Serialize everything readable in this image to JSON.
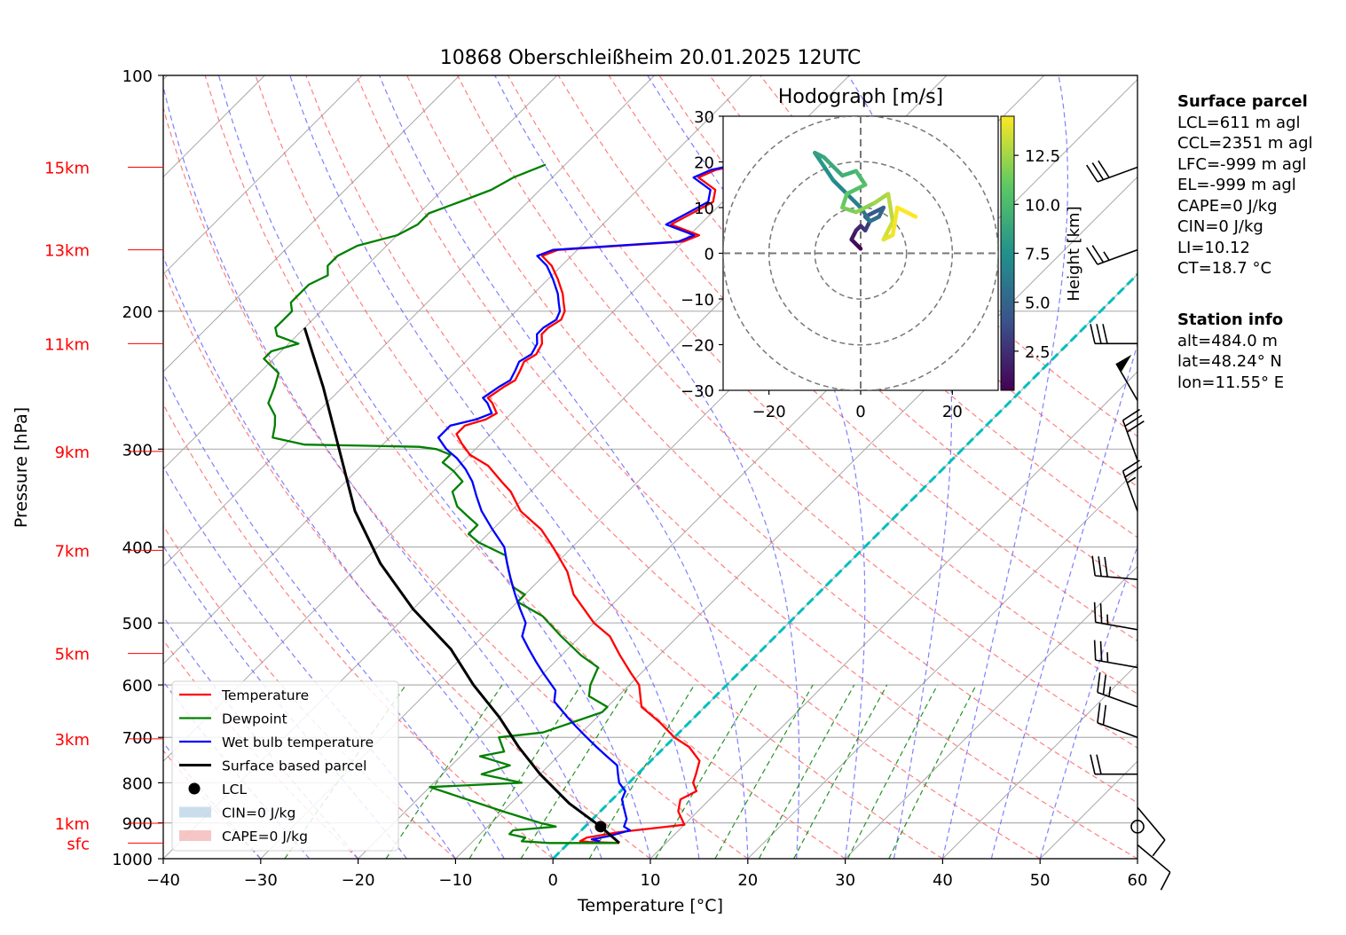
{
  "chart_data": {
    "type": "skew-t",
    "title": "10868 Oberschleißheim 20.01.2025 12UTC",
    "xlabel": "Temperature [°C]",
    "ylabel": "Pressure [hPa]",
    "xlim": [
      -40,
      60
    ],
    "ylim": [
      1000,
      100
    ],
    "x_ticks": [
      -40,
      -30,
      -20,
      -10,
      0,
      10,
      20,
      30,
      40,
      50,
      60
    ],
    "pressure_ticks": [
      100,
      200,
      300,
      400,
      500,
      600,
      700,
      800,
      900,
      1000
    ],
    "height_labels": [
      {
        "label": "15km",
        "p": 131
      },
      {
        "label": "13km",
        "p": 167
      },
      {
        "label": "11km",
        "p": 220
      },
      {
        "label": "9km",
        "p": 302
      },
      {
        "label": "7km",
        "p": 404
      },
      {
        "label": "5km",
        "p": 547
      },
      {
        "label": "3km",
        "p": 703
      },
      {
        "label": "1km",
        "p": 901
      },
      {
        "label": "sfc",
        "p": 955
      }
    ],
    "colors": {
      "temperature": "#ff0000",
      "dewpoint": "#008000",
      "wetbulb": "#0000ff",
      "parcel": "#000000",
      "isotherm_0": "#00bfbf",
      "dry_adiabat": "#ff6060",
      "moist_adiabat": "#6060ff",
      "mixing_ratio": "#008000",
      "height_label": "#ff0000"
    },
    "series": [
      {
        "name": "Temperature",
        "points": [
          [
            5.2,
            955
          ],
          [
            2,
            952
          ],
          [
            1,
            950
          ],
          [
            1.3,
            940
          ],
          [
            4,
            925
          ],
          [
            10,
            905
          ],
          [
            8,
            870
          ],
          [
            7,
            840
          ],
          [
            7.8,
            820
          ],
          [
            6.6,
            800
          ],
          [
            6,
            780
          ],
          [
            5,
            750
          ],
          [
            2.5,
            720
          ],
          [
            0,
            700
          ],
          [
            -3,
            670
          ],
          [
            -6.5,
            640
          ],
          [
            -9,
            600
          ],
          [
            -11,
            580
          ],
          [
            -14,
            550
          ],
          [
            -17,
            520
          ],
          [
            -20,
            500
          ],
          [
            -25,
            460
          ],
          [
            -28,
            430
          ],
          [
            -32,
            400
          ],
          [
            -35,
            380
          ],
          [
            -39,
            360
          ],
          [
            -42,
            340
          ],
          [
            -44,
            330
          ],
          [
            -47,
            315
          ],
          [
            -50,
            305
          ],
          [
            -52,
            295
          ],
          [
            -53.5,
            287
          ],
          [
            -53.5,
            280
          ],
          [
            -52,
            275
          ],
          [
            -51.5,
            270
          ],
          [
            -53,
            262
          ],
          [
            -54,
            258
          ],
          [
            -53.5,
            250
          ],
          [
            -53,
            245
          ],
          [
            -53.5,
            238
          ],
          [
            -54,
            232
          ],
          [
            -53.5,
            227
          ],
          [
            -54,
            220
          ],
          [
            -55,
            214
          ],
          [
            -55,
            210
          ],
          [
            -54.5,
            205
          ],
          [
            -55,
            200
          ],
          [
            -56,
            195
          ],
          [
            -57,
            190
          ],
          [
            -59,
            182
          ],
          [
            -61,
            175
          ],
          [
            -63,
            170
          ],
          [
            -62,
            167
          ],
          [
            -56,
            165
          ],
          [
            -50,
            163
          ],
          [
            -49,
            160
          ],
          [
            -53,
            155
          ],
          [
            -52,
            150
          ],
          [
            -51,
            145
          ],
          [
            -52,
            140
          ],
          [
            -55,
            135
          ],
          [
            -54,
            132
          ],
          [
            -52,
            130
          ]
        ]
      },
      {
        "name": "Dewpoint",
        "points": [
          [
            5,
            955
          ],
          [
            -2,
            955
          ],
          [
            -5,
            950
          ],
          [
            -5,
            940
          ],
          [
            -7,
            930
          ],
          [
            -7,
            920
          ],
          [
            -3,
            910
          ],
          [
            -5,
            900
          ],
          [
            -10,
            870
          ],
          [
            -20,
            810
          ],
          [
            -11,
            800
          ],
          [
            -16,
            780
          ],
          [
            -14,
            760
          ],
          [
            -18,
            740
          ],
          [
            -16,
            730
          ],
          [
            -18,
            700
          ],
          [
            -14,
            690
          ],
          [
            -12,
            670
          ],
          [
            -10,
            650
          ],
          [
            -10,
            640
          ],
          [
            -13,
            620
          ],
          [
            -14,
            600
          ],
          [
            -15,
            570
          ],
          [
            -18,
            550
          ],
          [
            -22,
            520
          ],
          [
            -26,
            490
          ],
          [
            -30,
            470
          ],
          [
            -30,
            460
          ],
          [
            -32,
            450
          ],
          [
            -34,
            430
          ],
          [
            -36,
            410
          ],
          [
            -40,
            395
          ],
          [
            -42,
            385
          ],
          [
            -42,
            375
          ],
          [
            -44,
            365
          ],
          [
            -46,
            355
          ],
          [
            -48,
            340
          ],
          [
            -48,
            330
          ],
          [
            -50,
            320
          ],
          [
            -52,
            312
          ],
          [
            -52,
            305
          ],
          [
            -54,
            300
          ],
          [
            -56,
            298
          ],
          [
            -62,
            297
          ],
          [
            -68,
            296
          ],
          [
            -72,
            290
          ],
          [
            -73,
            280
          ],
          [
            -74,
            272
          ],
          [
            -76,
            262
          ],
          [
            -77,
            250
          ],
          [
            -78,
            240
          ],
          [
            -81,
            230
          ],
          [
            -81,
            225
          ],
          [
            -79,
            220
          ],
          [
            -82,
            215
          ],
          [
            -83,
            210
          ],
          [
            -83,
            205
          ],
          [
            -83,
            200
          ],
          [
            -84,
            195
          ],
          [
            -84,
            190
          ],
          [
            -84,
            185
          ],
          [
            -83,
            180
          ],
          [
            -84,
            175
          ],
          [
            -84,
            170
          ],
          [
            -83,
            165
          ],
          [
            -80,
            160
          ],
          [
            -79,
            155
          ],
          [
            -79,
            150
          ],
          [
            -77,
            145
          ],
          [
            -75,
            140
          ],
          [
            -74,
            135
          ],
          [
            -72,
            130
          ]
        ]
      },
      {
        "name": "Wet bulb temperature",
        "points": [
          [
            3,
            950
          ],
          [
            2,
            945
          ],
          [
            3.5,
            935
          ],
          [
            5,
            920
          ],
          [
            4,
            910
          ],
          [
            3.5,
            890
          ],
          [
            3,
            880
          ],
          [
            2,
            860
          ],
          [
            1,
            840
          ],
          [
            0.5,
            820
          ],
          [
            -1,
            800
          ],
          [
            -2,
            780
          ],
          [
            -3,
            760
          ],
          [
            -5,
            740
          ],
          [
            -7,
            720
          ],
          [
            -9,
            700
          ],
          [
            -11,
            680
          ],
          [
            -13,
            660
          ],
          [
            -16,
            630
          ],
          [
            -17,
            610
          ],
          [
            -20,
            580
          ],
          [
            -22,
            560
          ],
          [
            -24,
            540
          ],
          [
            -26,
            520
          ],
          [
            -27,
            500
          ],
          [
            -29,
            480
          ],
          [
            -31,
            460
          ],
          [
            -33,
            440
          ],
          [
            -35,
            420
          ],
          [
            -37,
            400
          ],
          [
            -40,
            380
          ],
          [
            -43,
            360
          ],
          [
            -45,
            345
          ],
          [
            -47,
            330
          ],
          [
            -49,
            318
          ],
          [
            -51,
            308
          ],
          [
            -53,
            300
          ],
          [
            -55,
            290
          ],
          [
            -55,
            280
          ],
          [
            -53,
            275
          ],
          [
            -52,
            270
          ],
          [
            -53.5,
            262
          ],
          [
            -54.5,
            258
          ],
          [
            -54,
            250
          ],
          [
            -53.5,
            245
          ],
          [
            -54,
            238
          ],
          [
            -54.5,
            232
          ],
          [
            -54,
            227
          ],
          [
            -54.5,
            220
          ],
          [
            -55.5,
            214
          ],
          [
            -55.5,
            210
          ],
          [
            -55,
            205
          ],
          [
            -55.5,
            200
          ],
          [
            -56.5,
            195
          ],
          [
            -57.5,
            190
          ],
          [
            -59.5,
            182
          ],
          [
            -61.5,
            175
          ],
          [
            -63.5,
            170
          ],
          [
            -62.5,
            167
          ],
          [
            -56.5,
            165
          ],
          [
            -50.5,
            163
          ],
          [
            -49.5,
            160
          ],
          [
            -53.5,
            155
          ],
          [
            -52.5,
            150
          ],
          [
            -51.5,
            145
          ],
          [
            -52.5,
            140
          ],
          [
            -55.5,
            135
          ],
          [
            -54.5,
            132
          ],
          [
            -52.5,
            130
          ]
        ]
      },
      {
        "name": "Surface based parcel",
        "points": [
          [
            5.2,
            955
          ],
          [
            1.6,
            910
          ],
          [
            -4,
            850
          ],
          [
            -10,
            780
          ],
          [
            -15,
            720
          ],
          [
            -20,
            660
          ],
          [
            -26,
            600
          ],
          [
            -32,
            540
          ],
          [
            -40,
            480
          ],
          [
            -48,
            420
          ],
          [
            -56,
            360
          ],
          [
            -64,
            300
          ],
          [
            -72,
            250
          ],
          [
            -80,
            210
          ]
        ]
      }
    ],
    "lcl": {
      "T": 1.6,
      "p": 910
    },
    "legend": [
      "Temperature",
      "Dewpoint",
      "Wet bulb temperature",
      "Surface based parcel",
      "LCL",
      "CIN=0 J/kg",
      "CAPE=0 J/kg"
    ],
    "legend_placement": "lower-left",
    "wind_barbs": [
      {
        "p": 131,
        "dir": 250,
        "speed": 30
      },
      {
        "p": 167,
        "dir": 250,
        "speed": 25
      },
      {
        "p": 220,
        "dir": 270,
        "speed": 30
      },
      {
        "p": 260,
        "dir": 330,
        "speed": 50
      },
      {
        "p": 310,
        "dir": 340,
        "speed": 30
      },
      {
        "p": 360,
        "dir": 340,
        "speed": 25
      },
      {
        "p": 440,
        "dir": 275,
        "speed": 30
      },
      {
        "p": 510,
        "dir": 280,
        "speed": 25
      },
      {
        "p": 570,
        "dir": 280,
        "speed": 25
      },
      {
        "p": 640,
        "dir": 290,
        "speed": 25
      },
      {
        "p": 700,
        "dir": 290,
        "speed": 20
      },
      {
        "p": 780,
        "dir": 270,
        "speed": 20
      },
      {
        "p": 860,
        "dir": 140,
        "speed": 10
      },
      {
        "p": 910,
        "dir": 0,
        "speed": 0
      },
      {
        "p": 960,
        "dir": 130,
        "speed": 10
      }
    ],
    "hodograph": {
      "title": "Hodograph [m/s]",
      "xlim": [
        -30,
        30
      ],
      "ylim": [
        -30,
        30
      ],
      "ticks": [
        -30,
        -20,
        -10,
        0,
        10,
        20,
        30
      ],
      "x_ticks": [
        -20,
        0,
        20
      ],
      "rings": [
        10,
        20,
        30
      ],
      "colorbar_label": "Height [km]",
      "colorbar_ticks": [
        2.5,
        5.0,
        7.5,
        10.0,
        12.5
      ],
      "colorbar_ticklabels": [
        "2.5",
        "5.0",
        "7.5",
        "10.0",
        "12.5"
      ],
      "height_range": [
        0.5,
        14.5
      ],
      "points": [
        [
          0,
          1,
          0.5
        ],
        [
          -1,
          2,
          1
        ],
        [
          -2,
          3,
          1.5
        ],
        [
          -1,
          5,
          2
        ],
        [
          0,
          6,
          2.5
        ],
        [
          1,
          5,
          3
        ],
        [
          2,
          7,
          3.5
        ],
        [
          1,
          8,
          4
        ],
        [
          3,
          9,
          4.5
        ],
        [
          5,
          10,
          5
        ],
        [
          4,
          8,
          5.5
        ],
        [
          2,
          7,
          6
        ],
        [
          0,
          10,
          6.5
        ],
        [
          -3,
          13,
          7
        ],
        [
          -6,
          16,
          7.5
        ],
        [
          -8,
          19,
          8
        ],
        [
          -10,
          22,
          8.5
        ],
        [
          -8,
          21,
          9
        ],
        [
          -4,
          17,
          9.5
        ],
        [
          -1,
          18,
          10
        ],
        [
          1,
          15,
          10.5
        ],
        [
          -3,
          13,
          11
        ],
        [
          -4,
          10,
          11.5
        ],
        [
          -1,
          9,
          12
        ],
        [
          3,
          11,
          12.5
        ],
        [
          6,
          13,
          13
        ],
        [
          7,
          7,
          13.5
        ],
        [
          5,
          3,
          14
        ],
        [
          7,
          4,
          14.3
        ],
        [
          8,
          10,
          14.5
        ],
        [
          12,
          8,
          14.5
        ]
      ]
    },
    "surface_parcel": {
      "title": "Surface parcel",
      "lines": [
        "LCL=611 m agl",
        "CCL=2351 m agl",
        "LFC=-999 m agl",
        "EL=-999 m agl",
        "CAPE=0 J/kg",
        "CIN=0 J/kg",
        "LI=10.12",
        "CT=18.7 °C"
      ]
    },
    "station_info": {
      "title": "Station info",
      "lines": [
        "alt=484.0 m",
        "lat=48.24° N",
        "lon=11.55° E"
      ]
    }
  }
}
